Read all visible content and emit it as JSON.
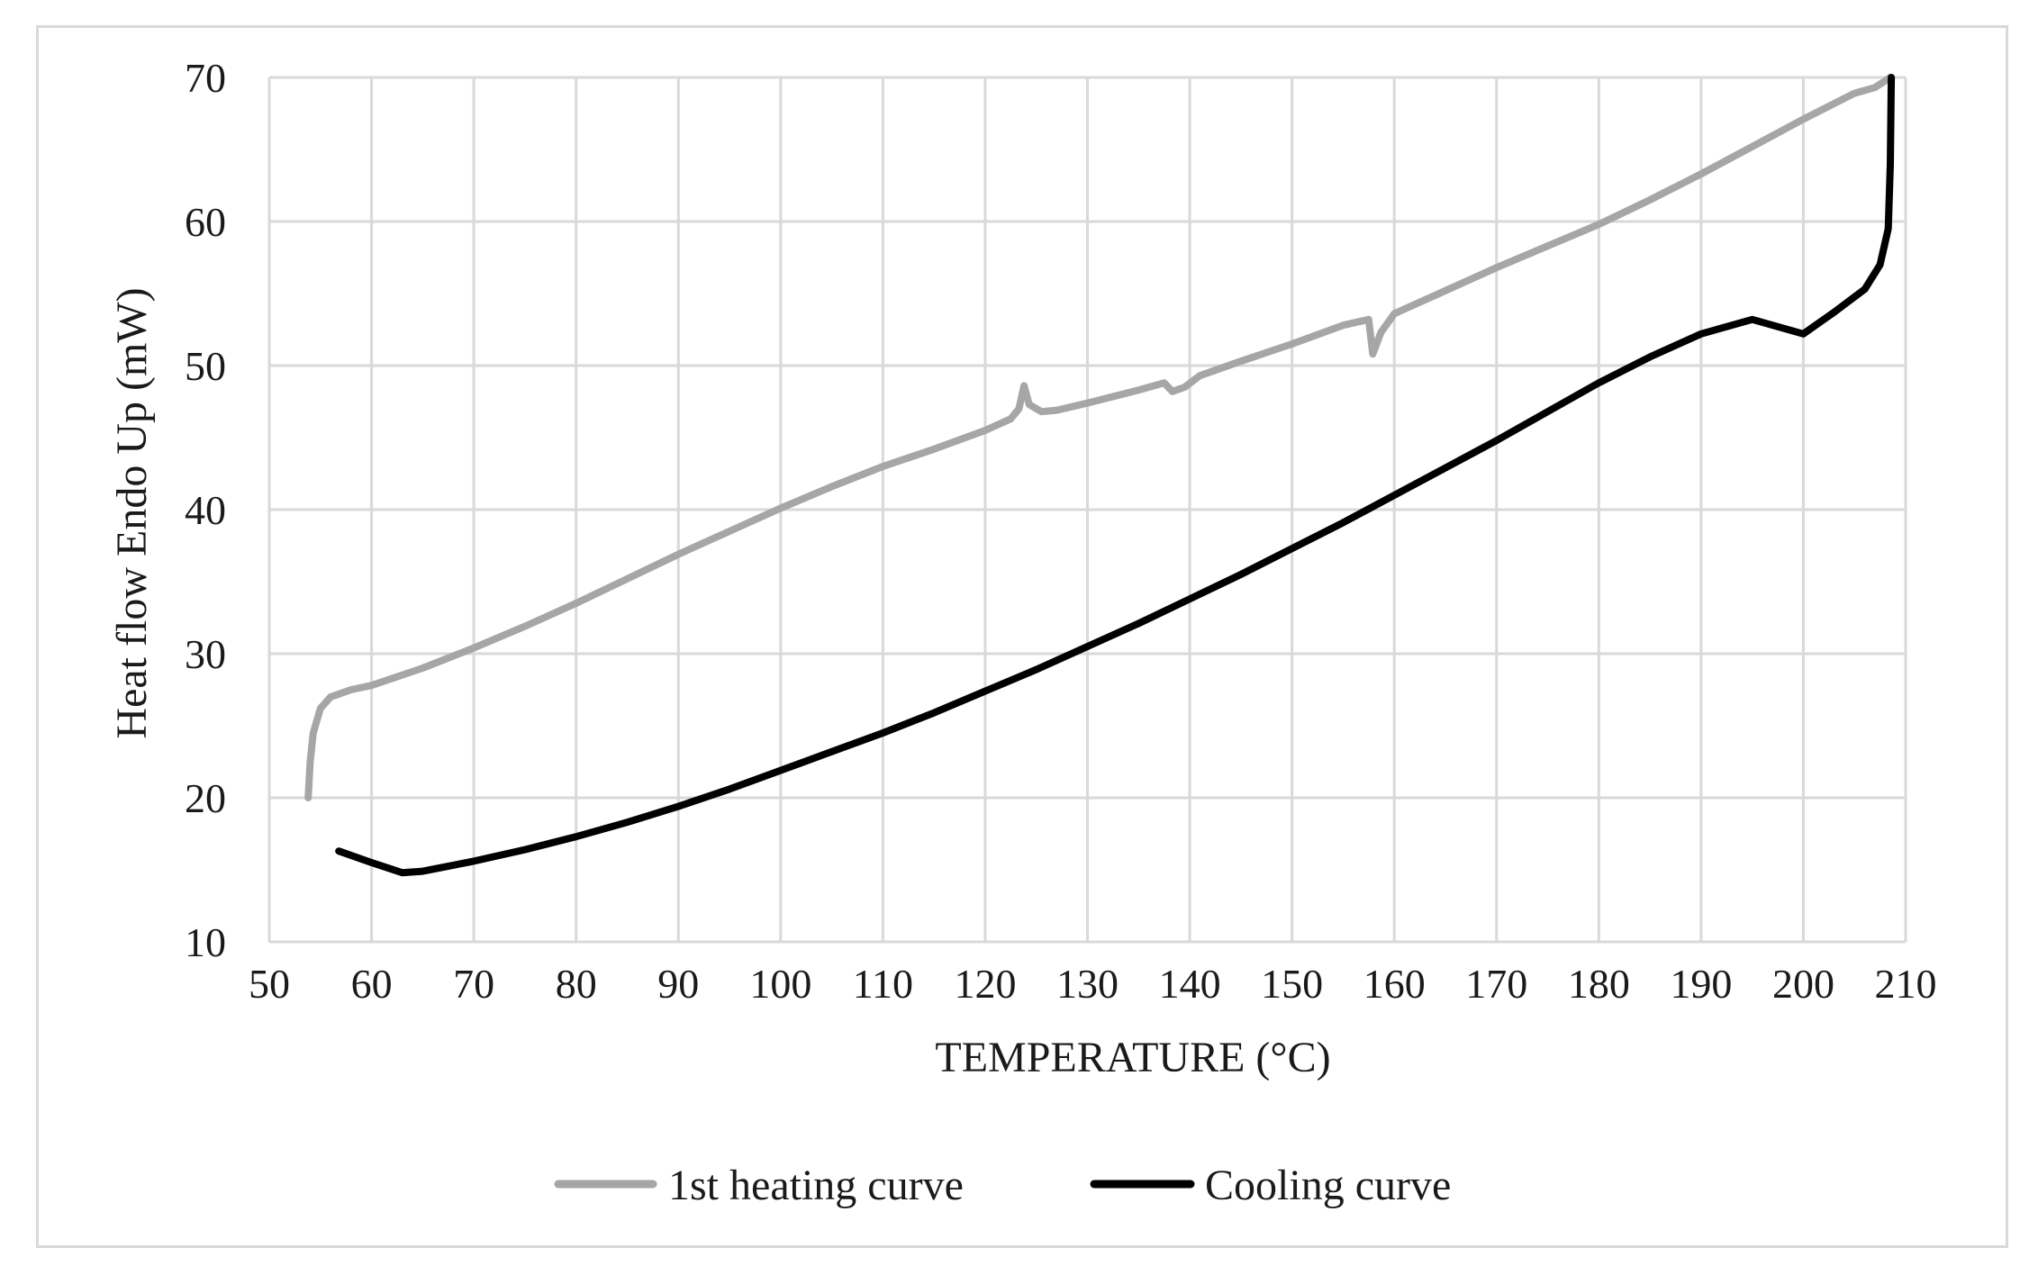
{
  "chart_data": {
    "type": "line",
    "title": "",
    "xlabel": "TEMPERATURE  (°C)",
    "ylabel": "Heat flow Endo Up (mW)",
    "xlim": [
      50,
      210
    ],
    "ylim": [
      10,
      70
    ],
    "x_ticks": [
      50,
      60,
      70,
      80,
      90,
      100,
      110,
      120,
      130,
      140,
      150,
      160,
      170,
      180,
      190,
      200,
      210
    ],
    "y_ticks": [
      10,
      20,
      30,
      40,
      50,
      60,
      70
    ],
    "grid": true,
    "legend_position": "bottom",
    "series": [
      {
        "name": "1st heating curve",
        "color": "#a6a6a6",
        "points": [
          [
            53.8,
            20.0
          ],
          [
            54.0,
            22.5
          ],
          [
            54.3,
            24.5
          ],
          [
            55.0,
            26.2
          ],
          [
            56.0,
            27.0
          ],
          [
            58.0,
            27.5
          ],
          [
            60.0,
            27.8
          ],
          [
            65.0,
            29.0
          ],
          [
            70.0,
            30.4
          ],
          [
            75.0,
            31.9
          ],
          [
            80.0,
            33.5
          ],
          [
            85.0,
            35.2
          ],
          [
            90.0,
            36.9
          ],
          [
            95.0,
            38.5
          ],
          [
            100.0,
            40.1
          ],
          [
            105.0,
            41.6
          ],
          [
            110.0,
            43.0
          ],
          [
            115.0,
            44.2
          ],
          [
            120.0,
            45.5
          ],
          [
            122.5,
            46.3
          ],
          [
            123.3,
            47.0
          ],
          [
            123.8,
            48.6
          ],
          [
            124.3,
            47.3
          ],
          [
            125.5,
            46.8
          ],
          [
            127.0,
            46.9
          ],
          [
            130.0,
            47.4
          ],
          [
            135.0,
            48.3
          ],
          [
            137.5,
            48.8
          ],
          [
            138.3,
            48.2
          ],
          [
            139.5,
            48.5
          ],
          [
            141.0,
            49.3
          ],
          [
            145.0,
            50.3
          ],
          [
            150.0,
            51.5
          ],
          [
            155.0,
            52.8
          ],
          [
            157.5,
            53.2
          ],
          [
            157.9,
            50.8
          ],
          [
            158.7,
            52.3
          ],
          [
            160.0,
            53.6
          ],
          [
            165.0,
            55.2
          ],
          [
            170.0,
            56.8
          ],
          [
            175.0,
            58.3
          ],
          [
            180.0,
            59.8
          ],
          [
            185.0,
            61.5
          ],
          [
            190.0,
            63.3
          ],
          [
            195.0,
            65.2
          ],
          [
            200.0,
            67.1
          ],
          [
            205.0,
            68.9
          ],
          [
            207.0,
            69.3
          ],
          [
            208.5,
            70.0
          ]
        ]
      },
      {
        "name": "Cooling curve",
        "color": "#000000",
        "points": [
          [
            56.8,
            16.3
          ],
          [
            60.0,
            15.5
          ],
          [
            63.0,
            14.8
          ],
          [
            65.0,
            14.9
          ],
          [
            70.0,
            15.6
          ],
          [
            75.0,
            16.4
          ],
          [
            80.0,
            17.3
          ],
          [
            85.0,
            18.3
          ],
          [
            90.0,
            19.4
          ],
          [
            95.0,
            20.6
          ],
          [
            100.0,
            21.9
          ],
          [
            105.0,
            23.2
          ],
          [
            110.0,
            24.5
          ],
          [
            115.0,
            25.9
          ],
          [
            120.0,
            27.4
          ],
          [
            125.0,
            28.9
          ],
          [
            130.0,
            30.5
          ],
          [
            135.0,
            32.1
          ],
          [
            140.0,
            33.8
          ],
          [
            145.0,
            35.5
          ],
          [
            150.0,
            37.3
          ],
          [
            155.0,
            39.1
          ],
          [
            160.0,
            41.0
          ],
          [
            165.0,
            42.9
          ],
          [
            170.0,
            44.8
          ],
          [
            175.0,
            46.8
          ],
          [
            180.0,
            48.8
          ],
          [
            185.0,
            50.6
          ],
          [
            190.0,
            52.2
          ],
          [
            195.0,
            53.2
          ],
          [
            200.0,
            52.2
          ],
          [
            203.0,
            53.7
          ],
          [
            206.0,
            55.3
          ],
          [
            207.5,
            57.0
          ],
          [
            208.3,
            59.5
          ],
          [
            208.5,
            64.0
          ],
          [
            208.6,
            70.0
          ]
        ]
      }
    ]
  }
}
